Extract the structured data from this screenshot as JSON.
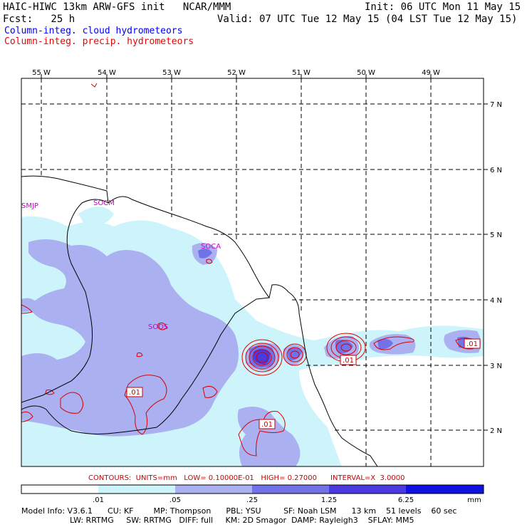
{
  "header": {
    "line1_left": "HAIC-HIWC 13km ARW-GFS init   NCAR/MMM",
    "line1_right": "Init: 06 UTC Mon 11 May 15",
    "line2_left": "Fcst:   25 h",
    "line2_right": "Valid: 07 UTC Tue 12 May 15 (04 LST Tue 12 May 15)",
    "legend_blue": "Column-integ. cloud hydrometeors",
    "legend_red": "Column-integ. precip. hydrometeors"
  },
  "map": {
    "lon_labels": [
      "55 W",
      "54 W",
      "53 W",
      "52 W",
      "51 W",
      "50 W",
      "49 W"
    ],
    "lat_labels": [
      "7 N",
      "6 N",
      "5 N",
      "4 N",
      "3 N",
      "2 N"
    ],
    "stations": [
      "SMJP",
      "SOCM",
      "SOCA",
      "SODS"
    ],
    "contour_labels": [
      ".01",
      ".01",
      ".01",
      ".01"
    ],
    "colors": {
      "shade_light": "#ccf4fa",
      "shade_mid": "#aab0f0",
      "shade_dark": "#7272e8",
      "shade_darker": "#4a3ae0",
      "shade_darkest": "#1010e0",
      "contour": "#dd0000",
      "coast": "#000000",
      "station": "#cc00cc"
    }
  },
  "contour_info": "CONTOURS:  UNITS=mm   LOW= 0.10000E-01   HIGH= 0.27000      INTERVAL=X  3.0000",
  "colorbar": {
    "ticks": [
      ".01",
      ".05",
      ".25",
      "1.25",
      "6.25"
    ],
    "units": "mm"
  },
  "footer": {
    "line1": "Model Info: V3.6.1      CU: KF        MP: Thompson      PBL: YSU         SF: Noah LSM      13 km    51 levels    60 sec",
    "line2": "LW: RRTMG     SW: RRTMG   DIFF: full     KM: 2D Smagor  DAMP: Rayleigh3    SFLAY: MM5"
  }
}
